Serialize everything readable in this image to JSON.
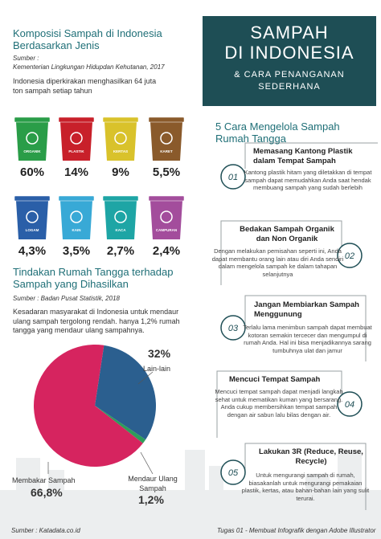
{
  "header": {
    "title_lines": [
      "SAMPAH",
      "DI INDONESIA"
    ],
    "subtitle_lines": [
      "& CARA PENANGANAN",
      "SEDERHANA"
    ]
  },
  "composition": {
    "title": "Komposisi Sampah di Indonesia Berdasarkan Jenis",
    "source_label": "Sumber :",
    "source": "Kementerian Lingkungan Hidupdan Kehutanan, 2017",
    "intro": "Indonesia diperkirakan menghasilkan 64 juta ton sampah setiap tahun",
    "bins": [
      {
        "label": "ORGANIK",
        "percent": "60%",
        "color": "#2a9d48"
      },
      {
        "label": "PLASTIK",
        "percent": "14%",
        "color": "#c8202a"
      },
      {
        "label": "KERTAS",
        "percent": "9%",
        "color": "#d9c22b"
      },
      {
        "label": "KARET",
        "percent": "5,5%",
        "color": "#8a5a2b"
      },
      {
        "label": "LOGAM",
        "percent": "4,3%",
        "color": "#2a5fa8"
      },
      {
        "label": "KAIN",
        "percent": "3,5%",
        "color": "#38a9d6"
      },
      {
        "label": "KACA",
        "percent": "2,7%",
        "color": "#1ea5a5"
      },
      {
        "label": "CAMPURAN",
        "percent": "2,4%",
        "color": "#a34d9c"
      }
    ]
  },
  "household": {
    "type": "pie",
    "title": "Tindakan Rumah Tangga terhadap Sampah yang Dihasilkan",
    "source": "Sumber : Badan Pusat Statistik, 2018",
    "text": "Kesadaran masyarakat di Indonesia untuk mendaur ulang sampah tergolong rendah. hanya 1,2% rumah tangga yang mendaur ulang sampahnya.",
    "slices": [
      {
        "name": "Lain-lain",
        "value": 32,
        "value_label": "32%",
        "color": "#2b5f8f"
      },
      {
        "name": "Mendaur Ulang Sampah",
        "value": 1.2,
        "value_label": "1,2%",
        "color": "#2e9c5a"
      },
      {
        "name": "Membakar Sampah",
        "value": 66.8,
        "value_label": "66,8%",
        "color": "#d6245f"
      }
    ]
  },
  "steps": {
    "title": "5 Cara Mengelola Sampah Rumah Tangga",
    "items": [
      {
        "number": "01",
        "title": "Memasang Kantong Plastik dalam Tempat Sampah",
        "body": "Kantong plastik hitam yang diletakkan di tempat sampah dapat memudahkan Anda saat hendak membuang sampah yang sudah berlebih"
      },
      {
        "number": "02",
        "title": "Bedakan Sampah Organik dan Non Organik",
        "body": "Dengan melakukan pemisahan seperti ini, Anda dapat membantu orang lain atau diri Anda sendiri dalam mengelola sampah ke dalam tahapan selanjutnya"
      },
      {
        "number": "03",
        "title": "Jangan Membiarkan Sampah Menggunung",
        "body": "Terlalu lama menimbun sampah dapat membuat kotoran semakin tercecer dan mengumpul di rumah Anda. Hal ini bisa menjadikannya sarang tumbuhnya ulat dan jamur"
      },
      {
        "number": "04",
        "title": "Mencuci Tempat Sampah",
        "body": "Mencuci tempat sampah dapat menjadi langkah sehat untuk mematikan kuman yang bersarang. Anda cukup membersihkan tempat sampah dengan air sabun lalu bilas dengan air."
      },
      {
        "number": "05",
        "title": "Lakukan 3R (Reduce, Reuse, Recycle)",
        "body": "Untuk mengurangi sampah di rumah, biasakanlah untuk mengurangi pemakaian plastik, kertas, atau bahan-bahan lain yang sulit terurai."
      }
    ]
  },
  "footer": {
    "source": "Sumber : Katadata.co.id",
    "note": "Tugas 01 - Membuat Infografik dengan Adobe Illustrator"
  }
}
